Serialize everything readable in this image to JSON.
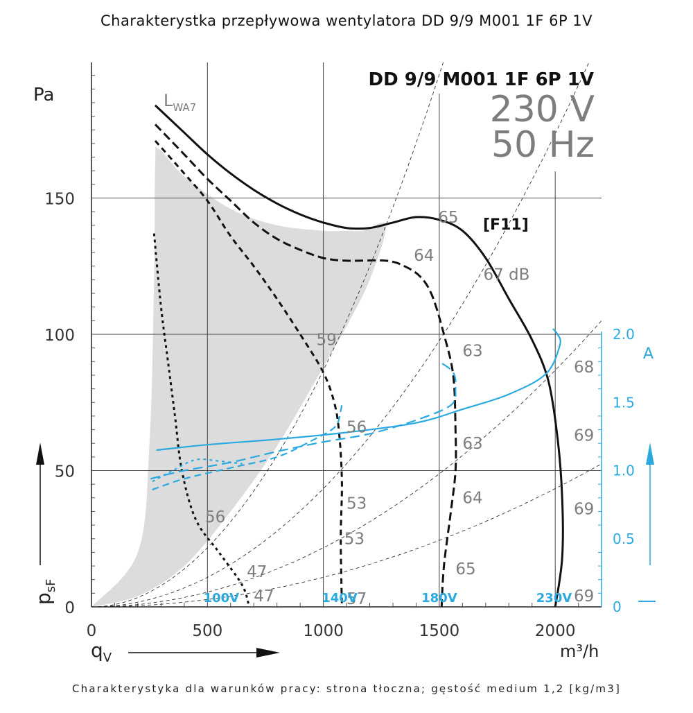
{
  "page": {
    "title": "Charakterystka przepływowa wentylatora DD 9/9 M001 1F 6P 1V",
    "footer": "Charakterystyka dla warunków pracy: strona tłoczna; gęstość medium 1,2 [kg/m3]"
  },
  "chart_data": {
    "type": "line",
    "header": {
      "model": "DD 9/9 M001 1F 6P 1V",
      "voltage": "230 V",
      "frequency": "50 Hz",
      "curve_tag": "[F11]",
      "lwa_label": "L",
      "lwa_sub": "WA7"
    },
    "xlabel": "q",
    "xlabel_sub": "V",
    "xunit": "m³/h",
    "ylabel": "p",
    "ylabel_sub": "sF",
    "yunit": "Pa",
    "y2unit": "A",
    "xlim": [
      0,
      2200
    ],
    "ylim": [
      0,
      200
    ],
    "y2lim": [
      0,
      4
    ],
    "x_ticks": [
      {
        "v": 0,
        "label": "0"
      },
      {
        "v": 500,
        "label": "500"
      },
      {
        "v": 1000,
        "label": "1000"
      },
      {
        "v": 1500,
        "label": "1500"
      },
      {
        "v": 2000,
        "label": "2000"
      }
    ],
    "y_ticks": [
      {
        "v": 0,
        "label": "0"
      },
      {
        "v": 50,
        "label": "50"
      },
      {
        "v": 100,
        "label": "100"
      },
      {
        "v": 150,
        "label": "150"
      }
    ],
    "y2_ticks": [
      {
        "v": 0,
        "label": "0"
      },
      {
        "v": 0.5,
        "label": "0.5"
      },
      {
        "v": 1.0,
        "label": "1.0"
      },
      {
        "v": 1.5,
        "label": "1.5"
      },
      {
        "v": 2.0,
        "label": "2.0"
      }
    ],
    "grid": true,
    "colors": {
      "pressure": "#111111",
      "current": "#29a9e0",
      "shade": "#dcdcdc",
      "gray_text": "#7d7d7d",
      "grid": "#555555"
    },
    "shaded_region": [
      [
        0,
        0
      ],
      [
        200,
        20
      ],
      [
        250,
        60
      ],
      [
        270,
        120
      ],
      [
        275,
        163
      ],
      [
        290,
        168
      ],
      [
        400,
        158
      ],
      [
        600,
        146
      ],
      [
        800,
        140
      ],
      [
        1000,
        138
      ],
      [
        1100,
        138
      ],
      [
        1170,
        138
      ],
      [
        1270,
        140
      ],
      [
        1200,
        120
      ],
      [
        1100,
        103
      ],
      [
        1000,
        88
      ],
      [
        800,
        59
      ],
      [
        600,
        35
      ],
      [
        400,
        15
      ],
      [
        200,
        4
      ],
      [
        0,
        0
      ]
    ],
    "pressure_series": [
      {
        "name": "230V",
        "dash": "solid",
        "points": [
          [
            275,
            184
          ],
          [
            400,
            174
          ],
          [
            500,
            166
          ],
          [
            600,
            159
          ],
          [
            700,
            153
          ],
          [
            800,
            148
          ],
          [
            900,
            144
          ],
          [
            1000,
            141
          ],
          [
            1100,
            139
          ],
          [
            1200,
            139
          ],
          [
            1300,
            141
          ],
          [
            1400,
            143
          ],
          [
            1500,
            142
          ],
          [
            1600,
            138
          ],
          [
            1700,
            128
          ],
          [
            1800,
            113
          ],
          [
            1900,
            98
          ],
          [
            1970,
            83
          ],
          [
            2010,
            62
          ],
          [
            2030,
            40
          ],
          [
            2030,
            18
          ],
          [
            2000,
            0
          ]
        ]
      },
      {
        "name": "180V",
        "dash": "12,6",
        "points": [
          [
            275,
            177
          ],
          [
            400,
            166
          ],
          [
            500,
            157
          ],
          [
            600,
            149
          ],
          [
            700,
            141
          ],
          [
            800,
            135
          ],
          [
            900,
            131
          ],
          [
            1000,
            128
          ],
          [
            1100,
            127
          ],
          [
            1270,
            127
          ],
          [
            1350,
            125
          ],
          [
            1420,
            121
          ],
          [
            1470,
            114
          ],
          [
            1520,
            100
          ],
          [
            1560,
            85
          ],
          [
            1570,
            65
          ],
          [
            1570,
            50
          ],
          [
            1550,
            35
          ],
          [
            1520,
            15
          ],
          [
            1510,
            0
          ]
        ]
      },
      {
        "name": "140V",
        "dash": "8,6",
        "points": [
          [
            275,
            171
          ],
          [
            400,
            159
          ],
          [
            500,
            149
          ],
          [
            600,
            136
          ],
          [
            700,
            125
          ],
          [
            800,
            113
          ],
          [
            900,
            100
          ],
          [
            1000,
            86
          ],
          [
            1050,
            74
          ],
          [
            1070,
            62
          ],
          [
            1080,
            45
          ],
          [
            1075,
            25
          ],
          [
            1080,
            0
          ]
        ]
      },
      {
        "name": "100V",
        "dash": "4,5",
        "points": [
          [
            270,
            137
          ],
          [
            300,
            110
          ],
          [
            330,
            90
          ],
          [
            360,
            70
          ],
          [
            390,
            50
          ],
          [
            450,
            32
          ],
          [
            550,
            20
          ],
          [
            650,
            8
          ],
          [
            680,
            0
          ]
        ]
      }
    ],
    "current_series": [
      {
        "name": "230V",
        "dash": "solid",
        "points": [
          [
            280,
            1.15
          ],
          [
            500,
            1.19
          ],
          [
            800,
            1.23
          ],
          [
            1100,
            1.28
          ],
          [
            1400,
            1.35
          ],
          [
            1600,
            1.45
          ],
          [
            1800,
            1.56
          ],
          [
            1960,
            1.71
          ],
          [
            2020,
            1.92
          ],
          [
            2010,
            2.0
          ],
          [
            1990,
            2.04
          ]
        ]
      },
      {
        "name": "180V",
        "dash": "14,7",
        "points": [
          [
            255,
            0.94
          ],
          [
            400,
            1.0
          ],
          [
            600,
            1.06
          ],
          [
            800,
            1.14
          ],
          [
            1000,
            1.21
          ],
          [
            1200,
            1.27
          ],
          [
            1400,
            1.37
          ],
          [
            1550,
            1.48
          ],
          [
            1570,
            1.6
          ],
          [
            1560,
            1.72
          ],
          [
            1500,
            1.8
          ]
        ]
      },
      {
        "name": "140V",
        "dash": "10,6",
        "points": [
          [
            262,
            0.86
          ],
          [
            400,
            0.94
          ],
          [
            600,
            1.02
          ],
          [
            800,
            1.1
          ],
          [
            950,
            1.22
          ],
          [
            1050,
            1.32
          ],
          [
            1075,
            1.44
          ],
          [
            1080,
            1.5
          ]
        ]
      },
      {
        "name": "100V",
        "dash": "4,5",
        "points": [
          [
            263,
            0.92
          ],
          [
            350,
            1.0
          ],
          [
            450,
            1.08
          ],
          [
            550,
            1.07
          ],
          [
            650,
            1.05
          ]
        ]
      }
    ],
    "system_curves": [
      {
        "k": 1
      },
      {
        "k": 0.5
      },
      {
        "k": 0.25
      },
      {
        "k": 0.125
      }
    ],
    "db_labels": [
      {
        "x": 1495,
        "y": 141,
        "text": "65"
      },
      {
        "x": 1690,
        "y": 120,
        "text": "67 dB"
      },
      {
        "x": 1390,
        "y": 127,
        "text": "64"
      },
      {
        "x": 970,
        "y": 96,
        "text": "59"
      },
      {
        "x": 1600,
        "y": 92,
        "text": "63"
      },
      {
        "x": 1600,
        "y": 58,
        "text": "63"
      },
      {
        "x": 1600,
        "y": 38,
        "text": "64"
      },
      {
        "x": 1570,
        "y": 12,
        "text": "65"
      },
      {
        "x": 1100,
        "y": 64,
        "text": "56"
      },
      {
        "x": 1100,
        "y": 36,
        "text": "53"
      },
      {
        "x": 1090,
        "y": 23,
        "text": "53"
      },
      {
        "x": 1100,
        "y": 1,
        "text": "57"
      },
      {
        "x": 490,
        "y": 31,
        "text": "56"
      },
      {
        "x": 670,
        "y": 11,
        "text": "47"
      },
      {
        "x": 700,
        "y": 2,
        "text": "47"
      },
      {
        "x": 2080,
        "y": 86,
        "text": "68"
      },
      {
        "x": 2080,
        "y": 61,
        "text": "69"
      },
      {
        "x": 2080,
        "y": 34,
        "text": "69"
      },
      {
        "x": 2080,
        "y": 2,
        "text": "69"
      }
    ],
    "voltage_labels": [
      {
        "x": 560,
        "text": "100V"
      },
      {
        "x": 1070,
        "text": "140V"
      },
      {
        "x": 1500,
        "text": "180V"
      },
      {
        "x": 1995,
        "text": "230V"
      }
    ]
  }
}
